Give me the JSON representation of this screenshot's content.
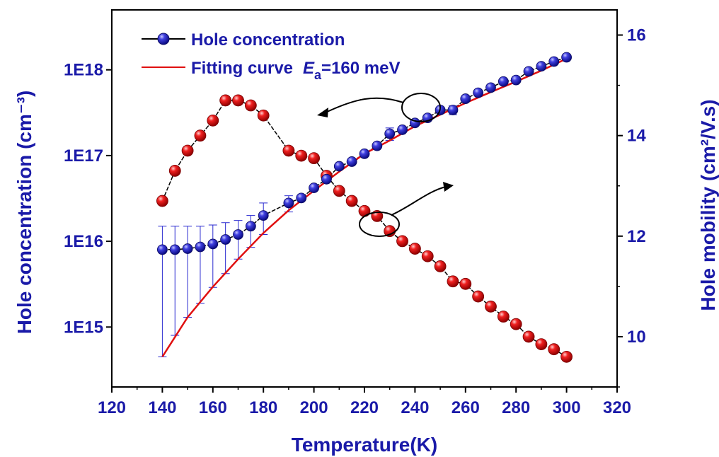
{
  "chart_data": {
    "type": "scatter",
    "xlabel": "Temperature(K)",
    "ylabel_left": "Hole concentration (cm⁻³)",
    "ylabel_right": "Hole mobility (cm²/V.s)",
    "xlim": [
      120,
      320
    ],
    "x_ticks": [
      "120",
      "140",
      "160",
      "180",
      "200",
      "220",
      "240",
      "260",
      "280",
      "300",
      "320"
    ],
    "y_left": {
      "scale": "log",
      "range": [
        200000000000000.0,
        5e+18
      ],
      "tick_labels": [
        "1E15",
        "1E16",
        "1E17",
        "1E18"
      ]
    },
    "y_right": {
      "range": [
        9.0,
        16.5
      ],
      "tick_labels": [
        "10",
        "12",
        "14",
        "16"
      ]
    },
    "legend": {
      "position": "top-left",
      "hole_concentration_label": "Hole concentration",
      "fit_label_prefix": "Fitting curve",
      "fit_label_symbol": "E",
      "fit_label_subscript": "a",
      "fit_label_suffix": "=160 meV"
    },
    "series": [
      {
        "name": "Hole concentration",
        "axis": "left",
        "color": "#1a1ad0",
        "x": [
          140,
          145,
          150,
          155,
          160,
          165,
          170,
          175,
          180,
          190,
          195,
          200,
          205,
          210,
          215,
          220,
          225,
          230,
          235,
          240,
          245,
          250,
          255,
          260,
          265,
          270,
          275,
          280,
          285,
          290,
          295,
          300
        ],
        "y": [
          8000000000000000.0,
          8000000000000000.0,
          8200000000000000.0,
          8600000000000000.0,
          9300000000000000.0,
          1.05e+16,
          1.2e+16,
          1.5e+16,
          2e+16,
          2.8e+16,
          3.2e+16,
          4.2e+16,
          5.3e+16,
          7.5e+16,
          8.5e+16,
          1.05e+17,
          1.3e+17,
          1.8e+17,
          2e+17,
          2.4e+17,
          2.75e+17,
          3.4e+17,
          3.4e+17,
          4.6e+17,
          5.4e+17,
          6.2e+17,
          7.3e+17,
          7.6e+17,
          9.6e+17,
          1.1e+18,
          1.25e+18,
          1.4e+18
        ],
        "y_err_upper": [
          1.5e+16,
          1.5e+16,
          1.5e+16,
          1.5e+16,
          1.55e+16,
          1.65e+16,
          1.75e+16,
          2e+16,
          2.8e+16,
          3.4e+16,
          null,
          null,
          null,
          null,
          null,
          null,
          null,
          2.1e+17,
          null,
          null,
          null,
          null,
          3.8e+17,
          null,
          null,
          null,
          null,
          null,
          null,
          null,
          null,
          null
        ],
        "y_err_lower": [
          450000000000000.0,
          800000000000000.0,
          1300000000000000.0,
          1900000000000000.0,
          2900000000000000.0,
          4200000000000000.0,
          6200000000000000.0,
          8500000000000000.0,
          1.2e+16,
          2.2e+16,
          null,
          null,
          null,
          null,
          null,
          null,
          null,
          1.5e+17,
          null,
          null,
          null,
          null,
          3e+17,
          null,
          null,
          null,
          null,
          null,
          null,
          null,
          null,
          null
        ]
      },
      {
        "name": "Fitting curve",
        "axis": "left",
        "color": "#e01010",
        "x": [
          140,
          150,
          160,
          170,
          180,
          190,
          200,
          210,
          220,
          230,
          240,
          250,
          260,
          270,
          280,
          290,
          300
        ],
        "y": [
          450000000000000.0,
          1300000000000000.0,
          2950000000000000.0,
          6200000000000000.0,
          1.25e+16,
          2.3e+16,
          3.9e+16,
          6.5e+16,
          1.05e+17,
          1.5e+17,
          2.2e+17,
          3e+17,
          4.1e+17,
          5.5e+17,
          7.3e+17,
          9.8e+17,
          1.35e+18
        ]
      },
      {
        "name": "Hole mobility",
        "axis": "right",
        "color": "#e01010",
        "x": [
          140,
          145,
          150,
          155,
          160,
          165,
          170,
          175,
          180,
          190,
          195,
          200,
          205,
          210,
          215,
          220,
          225,
          230,
          235,
          240,
          245,
          250,
          255,
          260,
          265,
          270,
          275,
          280,
          285,
          290,
          295,
          300
        ],
        "y": [
          12.7,
          13.3,
          13.7,
          14.0,
          14.3,
          14.7,
          14.7,
          14.6,
          14.4,
          13.7,
          13.6,
          13.55,
          13.2,
          12.9,
          12.7,
          12.5,
          12.4,
          12.1,
          11.9,
          11.75,
          11.6,
          11.4,
          11.1,
          11.05,
          10.8,
          10.6,
          10.4,
          10.25,
          10.0,
          9.85,
          9.75,
          9.6
        ]
      }
    ]
  }
}
